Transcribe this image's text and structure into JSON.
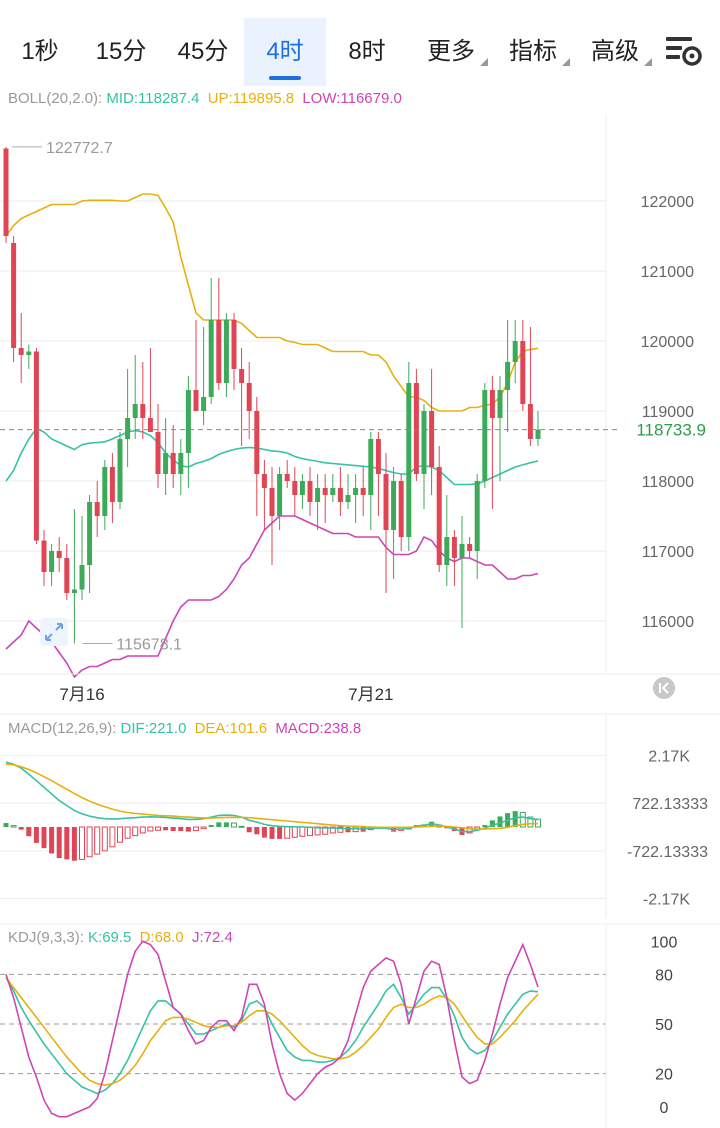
{
  "tabs": [
    {
      "label": "1秒",
      "active": false,
      "dropdown": false
    },
    {
      "label": "15分",
      "active": false,
      "dropdown": false
    },
    {
      "label": "45分",
      "active": false,
      "dropdown": false
    },
    {
      "label": "4时",
      "active": true,
      "dropdown": false
    },
    {
      "label": "8时",
      "active": false,
      "dropdown": false
    },
    {
      "label": "更多",
      "active": false,
      "dropdown": true
    },
    {
      "label": "指标",
      "active": false,
      "dropdown": true
    },
    {
      "label": "高级",
      "active": false,
      "dropdown": true
    }
  ],
  "settings_icon": "chart-settings-gear-icon",
  "colors": {
    "up": "#3daa5a",
    "down": "#e04555",
    "mid": "#35c3a5",
    "upper": "#e8b00e",
    "lower": "#cf44b6",
    "tab_active": "#1f6fe0",
    "grid": "#eeeeee",
    "dash": "#999999"
  },
  "chart_data": [
    {
      "type": "candlestick",
      "indicator": "BOLL(20,2.0)",
      "legend": [
        {
          "label": "BOLL(20,2.0):",
          "color": "#9a9a9a"
        },
        {
          "label": "MID:118287.4",
          "color": "#35c3a5"
        },
        {
          "label": "UP:119895.8",
          "color": "#e8b00e"
        },
        {
          "label": "LOW:116679.0",
          "color": "#cf44b6"
        }
      ],
      "y_ticks": [
        "122000",
        "121000",
        "120000",
        "119000",
        "118000",
        "117000",
        "116000"
      ],
      "y_tick_values": [
        122000,
        121000,
        120000,
        119000,
        118000,
        117000,
        116000
      ],
      "ylim": [
        115300,
        123100
      ],
      "x_labels": [
        {
          "label": "7月16",
          "index": 10
        },
        {
          "label": "7月21",
          "index": 48
        }
      ],
      "high_marker": {
        "label": "122772.7",
        "index": 0,
        "value": 122772.7
      },
      "low_marker": {
        "label": "115678.1",
        "index": 9,
        "value": 115678.1
      },
      "current_price": {
        "label": "118733.9",
        "value": 118733.9
      },
      "ohlc": [
        [
          122750,
          122772,
          121400,
          121500
        ],
        [
          121400,
          121500,
          119700,
          119900
        ],
        [
          119900,
          120400,
          119400,
          119800
        ],
        [
          119800,
          119950,
          119600,
          119850
        ],
        [
          119850,
          119900,
          117100,
          117150
        ],
        [
          117150,
          117300,
          116500,
          116700
        ],
        [
          116700,
          117100,
          116500,
          117000
        ],
        [
          117000,
          117200,
          116700,
          116900
        ],
        [
          116900,
          117100,
          116300,
          116400
        ],
        [
          116400,
          117600,
          115678,
          116450
        ],
        [
          116450,
          117500,
          116300,
          116800
        ],
        [
          116800,
          117800,
          116400,
          117700
        ],
        [
          117700,
          118000,
          117200,
          117500
        ],
        [
          117500,
          118300,
          117300,
          118200
        ],
        [
          118200,
          118400,
          117400,
          117700
        ],
        [
          117700,
          118700,
          117600,
          118600
        ],
        [
          118600,
          119600,
          118200,
          118900
        ],
        [
          118900,
          119800,
          118600,
          119100
        ],
        [
          119100,
          119700,
          118600,
          118900
        ],
        [
          118900,
          119900,
          118700,
          118700
        ],
        [
          118700,
          119100,
          117900,
          118100
        ],
        [
          118100,
          118900,
          117800,
          118400
        ],
        [
          118400,
          118800,
          117900,
          118100
        ],
        [
          118100,
          118600,
          117800,
          118400
        ],
        [
          118400,
          119500,
          117900,
          119300
        ],
        [
          119300,
          120300,
          119000,
          119000
        ],
        [
          119000,
          120200,
          118800,
          119200
        ],
        [
          119200,
          120900,
          119100,
          120300
        ],
        [
          120300,
          120900,
          119300,
          119400
        ],
        [
          119400,
          120400,
          119200,
          120300
        ],
        [
          120300,
          120400,
          119300,
          119600
        ],
        [
          119600,
          119900,
          118500,
          119400
        ],
        [
          119400,
          119700,
          118600,
          119000
        ],
        [
          119000,
          119200,
          117500,
          118100
        ],
        [
          118100,
          118300,
          117300,
          117900
        ],
        [
          117900,
          118200,
          116800,
          117500
        ],
        [
          117500,
          118200,
          117300,
          118100
        ],
        [
          118100,
          118300,
          117900,
          118000
        ],
        [
          118000,
          118200,
          117500,
          117800
        ],
        [
          117800,
          118100,
          117600,
          118000
        ],
        [
          118000,
          118200,
          117500,
          117700
        ],
        [
          117700,
          118100,
          117300,
          117900
        ],
        [
          117900,
          118100,
          117400,
          117800
        ],
        [
          117800,
          118100,
          117700,
          117900
        ],
        [
          117900,
          118200,
          117500,
          117700
        ],
        [
          117700,
          118100,
          117600,
          117800
        ],
        [
          117800,
          118100,
          117400,
          117900
        ],
        [
          117900,
          118200,
          117500,
          117800
        ],
        [
          117800,
          118700,
          117300,
          118600
        ],
        [
          118600,
          118700,
          117500,
          118100
        ],
        [
          118100,
          118400,
          116400,
          117300
        ],
        [
          117300,
          118200,
          116600,
          118000
        ],
        [
          118000,
          118100,
          117000,
          117200
        ],
        [
          117200,
          119700,
          117000,
          119400
        ],
        [
          119400,
          119600,
          118000,
          118100
        ],
        [
          118100,
          119100,
          117600,
          119000
        ],
        [
          119000,
          119600,
          117800,
          118200
        ],
        [
          118200,
          118500,
          116700,
          116800
        ],
        [
          116800,
          117800,
          116500,
          117200
        ],
        [
          117200,
          117300,
          116500,
          116900
        ],
        [
          116900,
          117500,
          115900,
          117100
        ],
        [
          117100,
          117200,
          116900,
          117000
        ],
        [
          117000,
          118100,
          116600,
          118000
        ],
        [
          118000,
          119400,
          117900,
          119300
        ],
        [
          119300,
          119500,
          117600,
          118900
        ],
        [
          118900,
          119500,
          118000,
          119300
        ],
        [
          119300,
          120300,
          118700,
          119700
        ],
        [
          119700,
          120300,
          119400,
          120000
        ],
        [
          120000,
          120300,
          119000,
          119100
        ],
        [
          119100,
          120200,
          118500,
          118600
        ],
        [
          118600,
          119000,
          118500,
          118733.9
        ]
      ],
      "mid": [
        118000,
        118150,
        118400,
        118600,
        118750,
        118700,
        118600,
        118550,
        118500,
        118450,
        118520,
        118540,
        118550,
        118560,
        118600,
        118650,
        118700,
        118720,
        118700,
        118650,
        118550,
        118400,
        118300,
        118220,
        118200,
        118250,
        118280,
        118320,
        118380,
        118420,
        118450,
        118470,
        118480,
        118470,
        118450,
        118430,
        118420,
        118400,
        118350,
        118320,
        118300,
        118280,
        118260,
        118250,
        118240,
        118230,
        118220,
        118210,
        118200,
        118180,
        118150,
        118120,
        118100,
        118100,
        118200,
        118220,
        118200,
        118150,
        118050,
        117950,
        117950,
        117950,
        117960,
        118000,
        118050,
        118100,
        118150,
        118200,
        118230,
        118260,
        118287.4
      ],
      "upper": [
        121500,
        121650,
        121750,
        121800,
        121850,
        121900,
        121950,
        121950,
        121950,
        121950,
        122000,
        122010,
        122010,
        122010,
        122010,
        122000,
        122000,
        122050,
        122100,
        122100,
        122080,
        121900,
        121700,
        121200,
        120800,
        120400,
        120300,
        120300,
        120300,
        120300,
        120300,
        120250,
        120150,
        120050,
        120050,
        120050,
        120050,
        120000,
        119980,
        119950,
        119950,
        119950,
        119900,
        119850,
        119850,
        119850,
        119850,
        119850,
        119800,
        119800,
        119700,
        119500,
        119350,
        119200,
        119200,
        119150,
        119050,
        119000,
        119000,
        119000,
        119000,
        119050,
        119050,
        119080,
        119100,
        119200,
        119400,
        119700,
        119850,
        119880,
        119895.8
      ],
      "lower": [
        115600,
        115700,
        115800,
        116000,
        115900,
        115800,
        115700,
        115550,
        115400,
        115200,
        115300,
        115350,
        115350,
        115400,
        115450,
        115450,
        115500,
        115500,
        115500,
        115500,
        115500,
        115750,
        116000,
        116200,
        116300,
        116300,
        116300,
        116300,
        116350,
        116450,
        116600,
        116800,
        116900,
        117100,
        117300,
        117400,
        117500,
        117500,
        117500,
        117450,
        117400,
        117350,
        117300,
        117250,
        117250,
        117250,
        117200,
        117200,
        117200,
        117200,
        117050,
        116950,
        116950,
        116950,
        117000,
        117200,
        117150,
        117000,
        116900,
        116850,
        116900,
        116900,
        116850,
        116800,
        116800,
        116700,
        116600,
        116600,
        116650,
        116650,
        116679.0
      ]
    },
    {
      "type": "macd",
      "indicator": "MACD(12,26,9)",
      "legend": [
        {
          "label": "MACD(12,26,9):",
          "color": "#9a9a9a"
        },
        {
          "label": "DIF:221.0",
          "color": "#35c3a5"
        },
        {
          "label": "DEA:101.6",
          "color": "#e8b00e"
        },
        {
          "label": "MACD:238.8",
          "color": "#cf44b6"
        }
      ],
      "y_ticks": [
        "2.17K",
        "722.13333",
        "-722.13333",
        "-2.17K"
      ],
      "y_tick_values": [
        2166.4,
        722.13333,
        -722.13333,
        -2166.4
      ],
      "ylim": [
        -2450,
        2450
      ],
      "dif": [
        1960,
        1900,
        1780,
        1600,
        1400,
        1200,
        1000,
        800,
        650,
        500,
        400,
        330,
        280,
        250,
        240,
        250,
        270,
        280,
        300,
        310,
        300,
        290,
        270,
        250,
        230,
        230,
        250,
        300,
        350,
        360,
        350,
        300,
        200,
        150,
        80,
        40,
        20,
        10,
        5,
        0,
        -10,
        -20,
        -30,
        -30,
        -40,
        -50,
        -50,
        -60,
        -40,
        -30,
        -40,
        -80,
        -60,
        -40,
        30,
        50,
        100,
        60,
        0,
        -60,
        -140,
        -140,
        -100,
        -30,
        50,
        120,
        200,
        280,
        300,
        250,
        221
      ],
      "dea": [
        1900,
        1880,
        1820,
        1740,
        1640,
        1520,
        1400,
        1270,
        1140,
        1010,
        890,
        780,
        690,
        610,
        540,
        480,
        440,
        410,
        390,
        370,
        350,
        340,
        330,
        310,
        300,
        285,
        275,
        270,
        280,
        290,
        290,
        290,
        280,
        260,
        240,
        220,
        200,
        180,
        160,
        140,
        120,
        100,
        80,
        60,
        40,
        30,
        20,
        10,
        0,
        -10,
        -10,
        -10,
        -10,
        -10,
        0,
        10,
        20,
        30,
        20,
        0,
        -20,
        -50,
        -60,
        -60,
        -50,
        -40,
        -10,
        40,
        80,
        100,
        101.6
      ],
      "macd": [
        120,
        40,
        -80,
        -280,
        -480,
        -640,
        -800,
        -940,
        -980,
        -1020,
        -980,
        -900,
        -820,
        -720,
        -600,
        -460,
        -340,
        -260,
        -180,
        -120,
        -100,
        -100,
        -120,
        -120,
        -140,
        -110,
        -50,
        60,
        140,
        140,
        120,
        20,
        -160,
        -220,
        -320,
        -360,
        -360,
        -340,
        -310,
        -280,
        -260,
        -240,
        -220,
        -180,
        -160,
        -160,
        -140,
        -140,
        -80,
        -40,
        -60,
        -140,
        -100,
        -60,
        60,
        80,
        160,
        60,
        -40,
        -120,
        -240,
        -180,
        -80,
        60,
        200,
        320,
        420,
        480,
        440,
        300,
        238.8
      ]
    },
    {
      "type": "kdj",
      "indicator": "KDJ(9,3,3)",
      "legend": [
        {
          "label": "KDJ(9,3,3):",
          "color": "#9a9a9a"
        },
        {
          "label": "K:69.5",
          "color": "#35c3a5"
        },
        {
          "label": "D:68.0",
          "color": "#e8b00e"
        },
        {
          "label": "J:72.4",
          "color": "#cf44b6"
        }
      ],
      "y_ticks": [
        "100",
        "80",
        "50",
        "20",
        "0"
      ],
      "y_tick_values": [
        100,
        80,
        50,
        20,
        0
      ],
      "dashed_levels": [
        80,
        50,
        20
      ],
      "ylim": [
        -8,
        102
      ],
      "k": [
        78,
        70,
        60,
        52,
        45,
        38,
        32,
        26,
        20,
        16,
        12,
        10,
        8,
        10,
        14,
        20,
        28,
        38,
        48,
        58,
        64,
        64,
        60,
        56,
        50,
        44,
        44,
        46,
        48,
        50,
        48,
        52,
        62,
        64,
        60,
        50,
        42,
        34,
        30,
        28,
        28,
        27,
        27,
        28,
        30,
        34,
        40,
        48,
        55,
        62,
        70,
        74,
        66,
        56,
        62,
        68,
        72,
        72,
        65,
        55,
        42,
        35,
        32,
        34,
        40,
        48,
        56,
        62,
        68,
        70,
        69.5
      ],
      "d": [
        78,
        72,
        66,
        60,
        54,
        48,
        42,
        36,
        30,
        25,
        20,
        16,
        14,
        13,
        14,
        16,
        20,
        25,
        32,
        40,
        46,
        52,
        54,
        54,
        53,
        51,
        49,
        48,
        48,
        49,
        49,
        51,
        55,
        58,
        58,
        56,
        52,
        47,
        42,
        37,
        33,
        31,
        30,
        29,
        29,
        30,
        33,
        37,
        42,
        47,
        54,
        60,
        62,
        60,
        60,
        62,
        65,
        67,
        66,
        62,
        55,
        48,
        42,
        38,
        38,
        42,
        47,
        52,
        58,
        63,
        68.0
      ],
      "j": [
        80,
        66,
        48,
        30,
        18,
        4,
        -4,
        -6,
        -6,
        -4,
        -2,
        0,
        5,
        20,
        40,
        60,
        80,
        94,
        100,
        98,
        92,
        76,
        60,
        56,
        46,
        38,
        40,
        48,
        52,
        52,
        46,
        54,
        74,
        74,
        62,
        38,
        20,
        8,
        4,
        8,
        14,
        20,
        24,
        26,
        30,
        40,
        56,
        72,
        82,
        86,
        90,
        88,
        74,
        50,
        66,
        82,
        88,
        86,
        66,
        40,
        18,
        14,
        16,
        28,
        44,
        62,
        78,
        88,
        98,
        86,
        72.4
      ]
    }
  ]
}
